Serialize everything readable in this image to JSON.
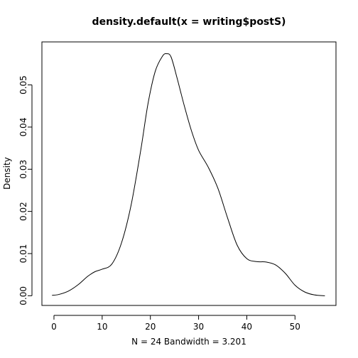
{
  "chart_data": {
    "type": "line",
    "title": "density.default(x = writing$postS)",
    "xlabel": "N = 24   Bandwidth = 3.201",
    "ylabel": "Density",
    "xlim": [
      -2.5,
      58.5
    ],
    "ylim": [
      -0.0023,
      0.0602
    ],
    "x_ticks": [
      0,
      10,
      20,
      30,
      40,
      50
    ],
    "x_tick_labels": [
      "0",
      "10",
      "20",
      "30",
      "40",
      "50"
    ],
    "y_ticks": [
      0.0,
      0.01,
      0.02,
      0.03,
      0.04,
      0.05
    ],
    "y_tick_labels": [
      "0.00",
      "0.01",
      "0.02",
      "0.03",
      "0.04",
      "0.05"
    ],
    "grid": false,
    "legend": "none",
    "series": [
      {
        "x": [
          -0.4,
          1,
          3,
          5,
          7,
          8.5,
          10,
          12,
          14,
          16,
          18,
          19.5,
          21,
          22.5,
          23.4,
          24.3,
          25.5,
          27,
          28.5,
          30,
          32,
          34,
          36,
          38,
          40,
          42,
          44,
          46,
          48,
          50,
          52,
          54,
          56.2
        ],
        "y": [
          0.0001,
          0.0003,
          0.0011,
          0.0026,
          0.0046,
          0.0057,
          0.0063,
          0.0075,
          0.0125,
          0.0215,
          0.0345,
          0.0455,
          0.0532,
          0.0568,
          0.0574,
          0.0566,
          0.0518,
          0.0452,
          0.0392,
          0.0345,
          0.0305,
          0.0255,
          0.0185,
          0.012,
          0.0088,
          0.0081,
          0.008,
          0.0073,
          0.0053,
          0.0025,
          0.0009,
          0.0002,
          0.0
        ],
        "color": "#000000"
      }
    ]
  }
}
